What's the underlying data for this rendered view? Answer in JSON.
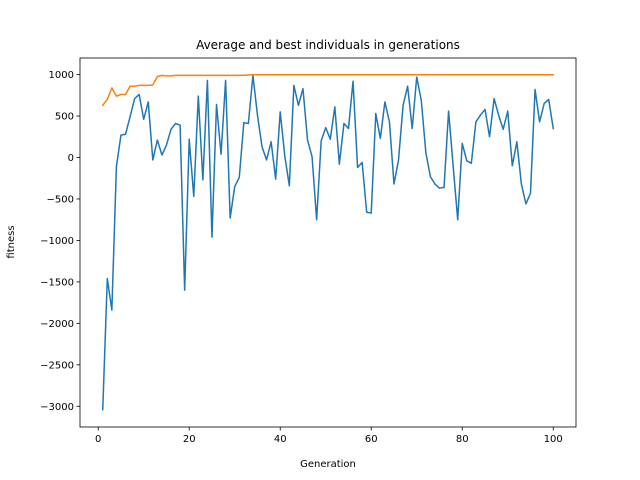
{
  "chart_data": {
    "type": "line",
    "title": "Average and best individuals in generations",
    "xlabel": "Generation",
    "ylabel": "fitness",
    "xlim": [
      -4,
      105
    ],
    "ylim": [
      -3250,
      1200
    ],
    "xticks": [
      0,
      20,
      40,
      60,
      80,
      100
    ],
    "yticks": [
      -3000,
      -2500,
      -2000,
      -1500,
      -1000,
      -500,
      0,
      500,
      1000
    ],
    "grid": false,
    "series": [
      {
        "color": "#1f77b4",
        "x": [
          1,
          2,
          3,
          4,
          5,
          6,
          7,
          8,
          9,
          10,
          11,
          12,
          13,
          14,
          15,
          16,
          17,
          18,
          19,
          20,
          21,
          22,
          23,
          24,
          25,
          26,
          27,
          28,
          29,
          30,
          31,
          32,
          33,
          34,
          35,
          36,
          37,
          38,
          39,
          40,
          41,
          42,
          43,
          44,
          45,
          46,
          47,
          48,
          49,
          50,
          51,
          52,
          53,
          54,
          55,
          56,
          57,
          58,
          59,
          60,
          61,
          62,
          63,
          64,
          65,
          66,
          67,
          68,
          69,
          70,
          71,
          72,
          73,
          74,
          75,
          76,
          77,
          78,
          79,
          80,
          81,
          82,
          83,
          84,
          85,
          86,
          87,
          88,
          89,
          90,
          91,
          92,
          93,
          94,
          95,
          96,
          97,
          98,
          99,
          100
        ],
        "values": [
          -3040,
          -1460,
          -1840,
          -110,
          270,
          280,
          490,
          710,
          760,
          460,
          670,
          -30,
          210,
          30,
          150,
          340,
          410,
          390,
          -1600,
          220,
          -470,
          740,
          -270,
          930,
          -960,
          640,
          40,
          930,
          -730,
          -350,
          -240,
          420,
          410,
          990,
          510,
          130,
          -30,
          190,
          -260,
          550,
          20,
          -340,
          870,
          630,
          830,
          210,
          10,
          -750,
          200,
          360,
          220,
          610,
          -80,
          410,
          350,
          920,
          -120,
          -60,
          -660,
          -670,
          530,
          230,
          670,
          430,
          -320,
          -30,
          630,
          860,
          350,
          970,
          690,
          60,
          -230,
          -320,
          -370,
          -360,
          560,
          -100,
          -750,
          170,
          -40,
          -70,
          430,
          510,
          580,
          250,
          710,
          510,
          340,
          560,
          -100,
          190,
          -320,
          -560,
          -430,
          820,
          430,
          650,
          700,
          350
        ]
      },
      {
        "color": "#ff7f0e",
        "x": [
          1,
          2,
          3,
          4,
          5,
          6,
          7,
          8,
          9,
          10,
          11,
          12,
          13,
          14,
          15,
          16,
          17,
          18,
          19,
          20,
          21,
          22,
          23,
          24,
          25,
          26,
          27,
          28,
          29,
          30,
          31,
          32,
          33,
          34,
          35,
          36,
          37,
          38,
          39,
          40,
          41,
          42,
          43,
          44,
          45,
          46,
          47,
          48,
          49,
          50,
          51,
          52,
          53,
          54,
          55,
          56,
          57,
          58,
          59,
          60,
          61,
          62,
          63,
          64,
          65,
          66,
          67,
          68,
          69,
          70,
          71,
          72,
          73,
          74,
          75,
          76,
          77,
          78,
          79,
          80,
          81,
          82,
          83,
          84,
          85,
          86,
          87,
          88,
          89,
          90,
          91,
          92,
          93,
          94,
          95,
          96,
          97,
          98,
          99,
          100
        ],
        "values": [
          630,
          700,
          840,
          740,
          760,
          760,
          860,
          860,
          870,
          870,
          870,
          875,
          975,
          990,
          985,
          985,
          990,
          990,
          990,
          990,
          990,
          990,
          990,
          990,
          990,
          990,
          990,
          990,
          990,
          990,
          990,
          992,
          995,
          998,
          998,
          998,
          998,
          998,
          998,
          998,
          998,
          998,
          998,
          998,
          998,
          998,
          998,
          998,
          998,
          998,
          998,
          998,
          998,
          998,
          998,
          998,
          998,
          998,
          998,
          998,
          998,
          998,
          998,
          998,
          998,
          998,
          998,
          998,
          998,
          998,
          998,
          998,
          998,
          998,
          998,
          998,
          998,
          998,
          998,
          998,
          998,
          998,
          998,
          998,
          998,
          998,
          998,
          998,
          998,
          998,
          998,
          998,
          998,
          998,
          998,
          998,
          998,
          998,
          998,
          998
        ]
      }
    ]
  }
}
